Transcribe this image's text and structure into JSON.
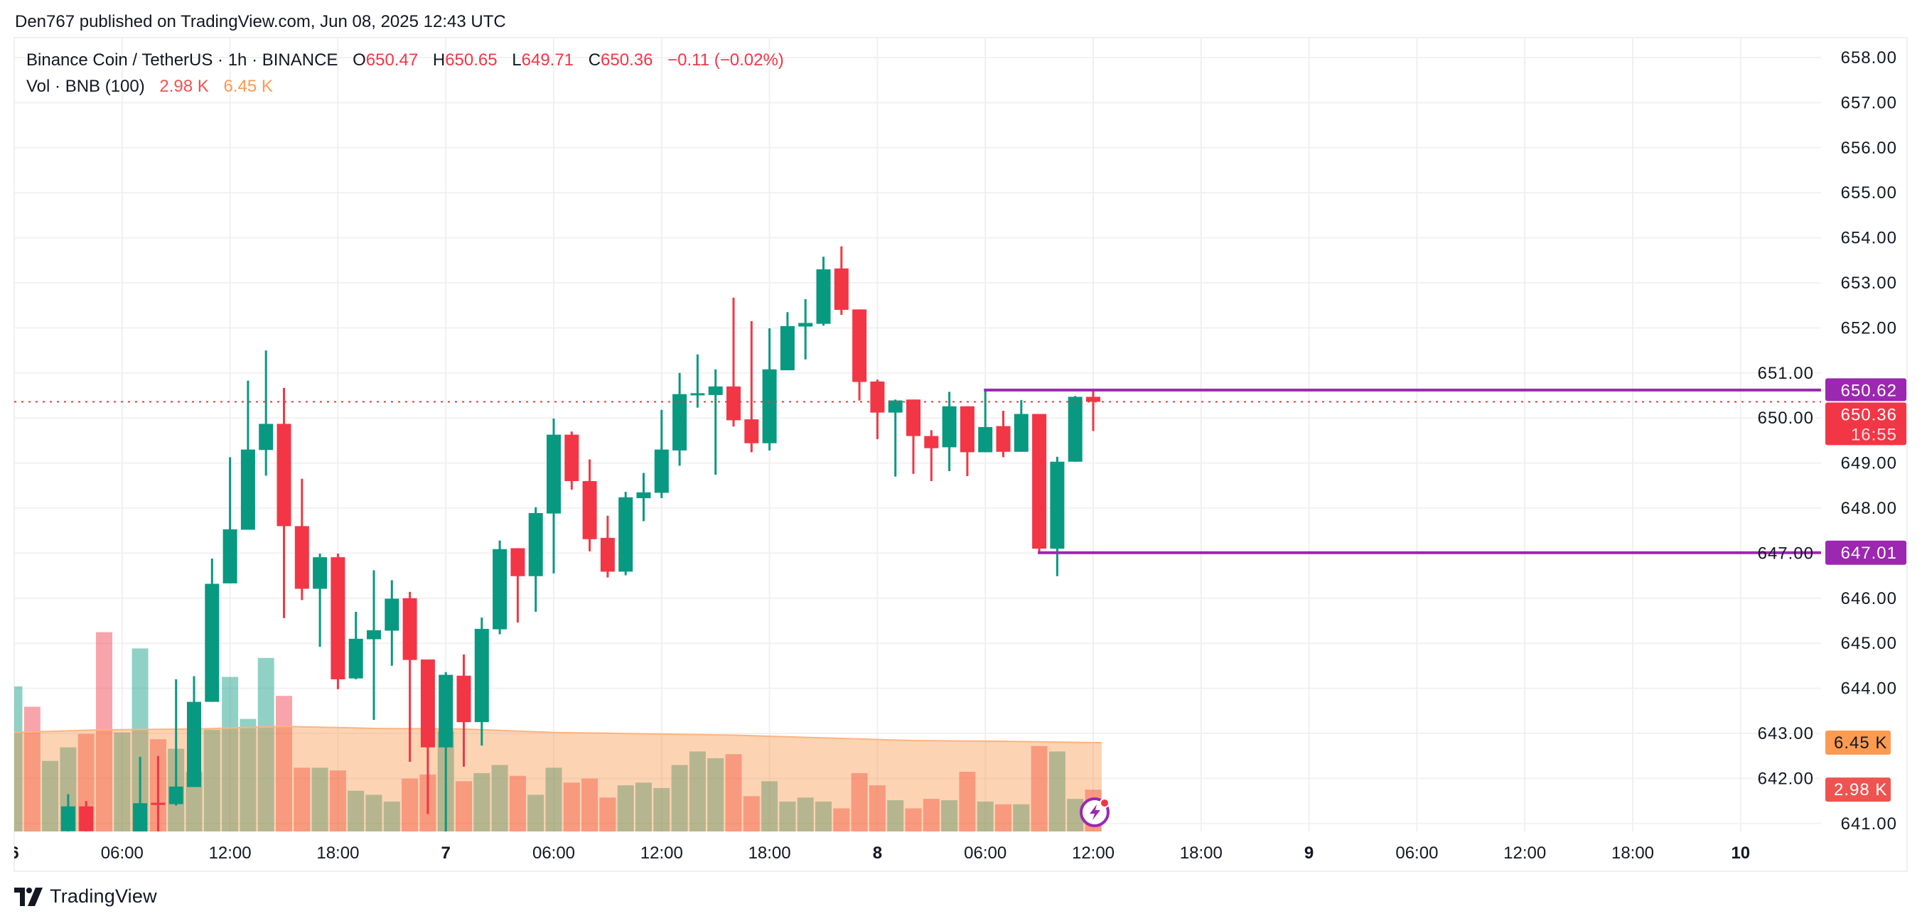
{
  "header": {
    "published": "Den767 published on TradingView.com, Jun 08, 2025 12:43 UTC"
  },
  "legend": {
    "symbol": "Binance Coin / TetherUS · 1h · BINANCE",
    "o_label": "O",
    "o_value": "650.47",
    "h_label": "H",
    "h_value": "650.65",
    "l_label": "L",
    "l_value": "649.71",
    "c_label": "C",
    "c_value": "650.36",
    "change": "−0.11 (−0.02%)",
    "vol_label": "Vol · BNB (100)",
    "vol_value": "2.98 K",
    "vol_ma_value": "6.45 K"
  },
  "footer": {
    "brand": "TradingView",
    "logo_icon": "tradingview-logo-icon"
  },
  "colors": {
    "up": "#089981",
    "down": "#f23645",
    "vol_up": "rgba(8,153,129,0.45)",
    "vol_down": "rgba(242,54,69,0.45)",
    "ma_fill": "rgba(247,135,46,0.36)",
    "ma_line": "#ffb380",
    "level": "#9c27b0",
    "vol_badge": "#ff9b50",
    "vol_last_badge": "#ef5350"
  },
  "chart_data": {
    "type": "candlestick",
    "title": "Binance Coin / TetherUS · 1h · BINANCE",
    "x_unit": "hours since Jun 6 00:00",
    "x_range": [
      0,
      100.5
    ],
    "ylim": [
      640.75,
      658.45
    ],
    "price_ticks": [
      "658.00",
      "657.00",
      "656.00",
      "655.00",
      "654.00",
      "653.00",
      "652.00",
      "651.00",
      "650.00",
      "649.00",
      "648.00",
      "647.00",
      "646.00",
      "645.00",
      "644.00",
      "643.00",
      "642.00",
      "641.00"
    ],
    "time_ticks": [
      {
        "label": "6",
        "h": 0
      },
      {
        "label": "06:00",
        "h": 6
      },
      {
        "label": "12:00",
        "h": 12
      },
      {
        "label": "18:00",
        "h": 18
      },
      {
        "label": "7",
        "h": 24
      },
      {
        "label": "06:00",
        "h": 30
      },
      {
        "label": "12:00",
        "h": 36
      },
      {
        "label": "18:00",
        "h": 42
      },
      {
        "label": "8",
        "h": 48
      },
      {
        "label": "06:00",
        "h": 54
      },
      {
        "label": "12:00",
        "h": 60
      },
      {
        "label": "18:00",
        "h": 66
      },
      {
        "label": "9",
        "h": 72
      },
      {
        "label": "06:00",
        "h": 78
      },
      {
        "label": "12:00",
        "h": 84
      },
      {
        "label": "18:00",
        "h": 90
      },
      {
        "label": "10",
        "h": 96
      }
    ],
    "candles": [
      [
        3,
        640.83,
        641.65,
        640.7,
        641.38
      ],
      [
        4,
        641.38,
        641.5,
        640.7,
        640.83
      ],
      [
        7,
        640.7,
        642.48,
        640.5,
        641.45
      ],
      [
        8,
        641.46,
        642.5,
        640.5,
        641.44
      ],
      [
        9,
        641.43,
        644.2,
        641.4,
        641.82
      ],
      [
        10,
        641.81,
        644.27,
        641.81,
        643.7
      ],
      [
        11,
        643.7,
        646.88,
        643.7,
        646.32
      ],
      [
        12,
        646.33,
        649.13,
        646.33,
        647.53
      ],
      [
        13,
        647.52,
        650.83,
        647.52,
        649.3
      ],
      [
        14,
        649.29,
        651.5,
        648.72,
        649.87
      ],
      [
        15,
        649.87,
        650.67,
        645.56,
        647.6
      ],
      [
        16,
        647.6,
        648.65,
        645.96,
        646.21
      ],
      [
        17,
        646.21,
        646.99,
        644.92,
        646.91
      ],
      [
        18,
        646.91,
        646.99,
        643.98,
        644.2
      ],
      [
        19,
        644.22,
        645.7,
        644.2,
        645.1
      ],
      [
        20,
        645.09,
        646.62,
        643.3,
        645.29
      ],
      [
        21,
        645.28,
        646.4,
        644.5,
        645.99
      ],
      [
        22,
        646.0,
        646.14,
        642.37,
        644.63
      ],
      [
        23,
        644.64,
        644.64,
        641.21,
        642.69
      ],
      [
        24,
        642.69,
        644.36,
        640.8,
        644.3
      ],
      [
        25,
        644.28,
        644.75,
        642.26,
        643.25
      ],
      [
        26,
        643.25,
        645.57,
        642.73,
        645.32
      ],
      [
        27,
        645.31,
        647.28,
        645.2,
        647.09
      ],
      [
        28,
        647.11,
        647.11,
        645.46,
        646.49
      ],
      [
        29,
        646.49,
        648.02,
        645.7,
        647.89
      ],
      [
        30,
        647.88,
        649.99,
        646.55,
        649.63
      ],
      [
        31,
        649.63,
        649.7,
        648.41,
        648.6
      ],
      [
        32,
        648.6,
        649.08,
        647.04,
        647.31
      ],
      [
        33,
        647.34,
        647.83,
        646.46,
        646.59
      ],
      [
        34,
        646.59,
        648.36,
        646.51,
        648.24
      ],
      [
        35,
        648.22,
        648.78,
        647.71,
        648.35
      ],
      [
        36,
        648.34,
        650.18,
        648.22,
        649.3
      ],
      [
        37,
        649.28,
        651.0,
        648.94,
        650.53
      ],
      [
        38,
        650.53,
        651.41,
        650.23,
        650.55
      ],
      [
        39,
        650.51,
        651.08,
        648.74,
        650.7
      ],
      [
        40,
        650.7,
        652.67,
        649.81,
        649.95
      ],
      [
        41,
        649.97,
        652.15,
        649.24,
        649.44
      ],
      [
        42,
        649.44,
        651.99,
        649.28,
        651.08
      ],
      [
        43,
        651.06,
        652.35,
        651.06,
        652.04
      ],
      [
        44,
        652.03,
        652.64,
        651.3,
        652.11
      ],
      [
        45,
        652.09,
        653.58,
        652.05,
        653.3
      ],
      [
        46,
        653.32,
        653.81,
        652.29,
        652.4
      ],
      [
        47,
        652.41,
        652.41,
        650.39,
        650.8
      ],
      [
        48,
        650.81,
        650.85,
        649.53,
        650.12
      ],
      [
        49,
        650.12,
        650.41,
        648.7,
        650.39
      ],
      [
        50,
        650.41,
        650.41,
        648.76,
        649.6
      ],
      [
        51,
        649.6,
        649.73,
        648.6,
        649.33
      ],
      [
        52,
        649.35,
        650.58,
        648.82,
        650.26
      ],
      [
        53,
        650.26,
        650.26,
        648.71,
        649.24
      ],
      [
        54,
        649.24,
        650.62,
        649.24,
        649.8
      ],
      [
        55,
        649.82,
        650.16,
        649.13,
        649.25
      ],
      [
        56,
        649.25,
        650.4,
        649.25,
        650.09
      ],
      [
        57,
        650.09,
        650.09,
        647.01,
        647.1
      ],
      [
        58,
        647.1,
        649.14,
        646.49,
        649.03
      ],
      [
        59,
        649.03,
        650.49,
        649.03,
        650.47
      ],
      [
        60,
        650.47,
        650.65,
        649.71,
        650.36
      ]
    ],
    "volume_k": [
      10.6,
      9.1,
      5.1,
      6.1,
      7.1,
      14.6,
      7.2,
      13.4,
      6.7,
      6.0,
      4.3,
      7.4,
      11.3,
      8.2,
      12.7,
      9.9,
      4.6,
      4.6,
      4.4,
      2.9,
      2.6,
      2.1,
      3.8,
      4.1,
      7.3,
      3.6,
      4.2,
      4.8,
      4.0,
      2.6,
      4.6,
      3.5,
      3.8,
      2.4,
      3.3,
      3.5,
      3.1,
      4.8,
      5.8,
      5.3,
      5.6,
      2.5,
      3.6,
      2.1,
      2.4,
      2.1,
      1.6,
      4.2,
      3.3,
      2.2,
      1.6,
      2.3,
      2.2,
      4.3,
      2.1,
      1.9,
      1.9,
      6.2,
      5.8,
      2.3,
      2.98
    ],
    "volume_dir": "grggrrggrggggggrrgrgggrrgrggrggrrrggggggrrggggrrrgrrgrgrgrggr",
    "volume_ma": [
      {
        "h": 0,
        "v": 7.2
      },
      {
        "h": 5,
        "v": 7.4
      },
      {
        "h": 10,
        "v": 7.45
      },
      {
        "h": 15,
        "v": 7.65
      },
      {
        "h": 20,
        "v": 7.5
      },
      {
        "h": 25,
        "v": 7.45
      },
      {
        "h": 30,
        "v": 7.2
      },
      {
        "h": 35,
        "v": 7.1
      },
      {
        "h": 40,
        "v": 7.0
      },
      {
        "h": 45,
        "v": 6.8
      },
      {
        "h": 50,
        "v": 6.6
      },
      {
        "h": 55,
        "v": 6.55
      },
      {
        "h": 60,
        "v": 6.45
      }
    ],
    "levels": [
      {
        "name": "resistance",
        "price": 650.62,
        "label": "650.62",
        "from_h": 54
      },
      {
        "name": "support",
        "price": 647.01,
        "label": "647.01",
        "from_h": 57
      }
    ],
    "last_price": {
      "price": 650.36,
      "label": "650.36",
      "countdown": "16:55"
    },
    "volume_badges": [
      {
        "name": "volume-ma-badge",
        "value": 6.45,
        "label": "6.45 K"
      },
      {
        "name": "volume-last-badge",
        "value": 2.98,
        "label": "2.98 K"
      }
    ]
  }
}
